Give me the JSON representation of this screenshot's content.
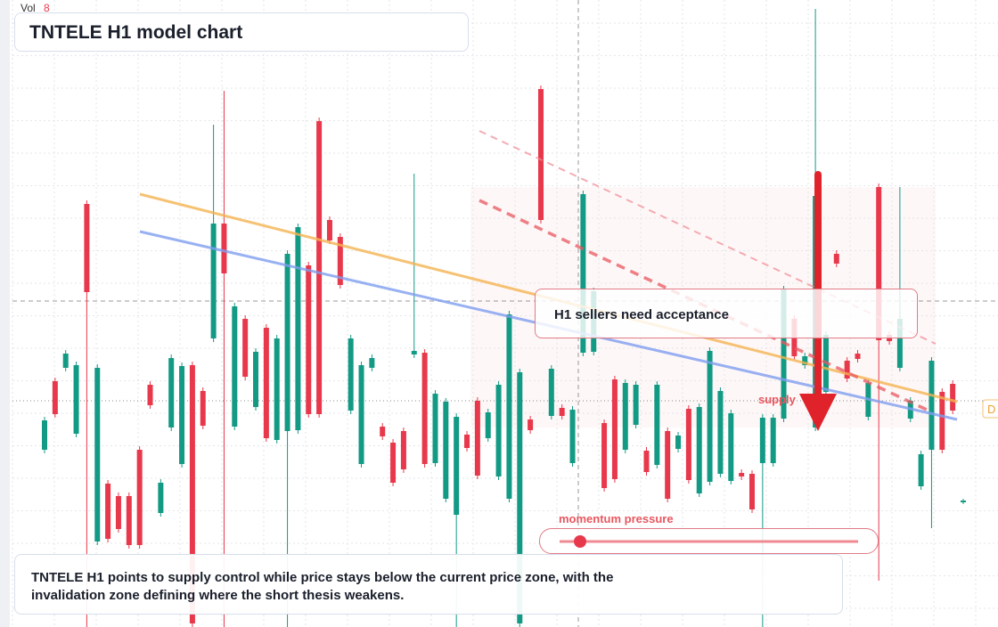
{
  "chart_data": {
    "type": "candlestick",
    "title": "TNTELE H1 model chart",
    "volume_label": "Vol",
    "volume": 8,
    "annotation": "H1 sellers need acceptance",
    "zone_label": "supply",
    "edge_label": "D",
    "meter_label": "momentum pressure",
    "caption": "TNTELE H1 points to supply control while price stays below the current price zone, with the invalidation zone defining where the short thesis weakens.",
    "up_color": "#129a84",
    "down_color": "#e8384b",
    "ylim": [
      99.6,
      170
    ],
    "open": [
      119.5,
      127.2,
      128.7,
      121.3,
      147.1,
      109.2,
      115.7,
      114.3,
      114.3,
      119.5,
      126.8,
      112.4,
      122.0,
      117.9,
      129.0,
      126.1,
      132.0,
      144.9,
      122.1,
      134.2,
      124.3,
      133.2,
      120.6,
      121.6,
      121.7,
      140.2,
      156.4,
      145.3,
      143.4,
      123.9,
      117.9,
      128.7,
      122.1,
      120.3,
      121.6,
      130.2,
      130.4,
      118.0,
      114.0,
      112.2,
      121.2,
      125.0,
      120.8,
      116.5,
      114.0,
      100.0,
      122.9,
      160.0,
      123.3,
      124.2,
      118.0,
      130.4,
      130.5,
      122.5,
      127.4,
      119.5,
      122.3,
      119.4,
      117.8,
      121.6,
      119.6,
      124.1,
      114.6,
      115.9,
      116.8,
      116.0,
      116.9,
      116.8,
      118.0,
      118.0,
      123.0,
      134.2,
      129.0,
      122.0,
      126.0,
      141.5,
      129.5,
      130.3,
      123.2,
      149.0,
      132.4,
      128.7,
      123.0,
      115.4,
      119.5,
      126.0,
      126.9,
      113.6
    ],
    "high": [
      123.2,
      127.6,
      130.7,
      129.4,
      147.5,
      129.1,
      116.1,
      114.7,
      114.7,
      119.9,
      127.2,
      116.2,
      130.2,
      129.3,
      129.4,
      126.5,
      156.0,
      159.8,
      136.0,
      134.6,
      130.9,
      133.6,
      132.4,
      141.9,
      144.9,
      140.6,
      156.8,
      145.7,
      143.8,
      132.4,
      129.4,
      130.2,
      122.5,
      120.7,
      122.0,
      150.5,
      130.8,
      126.2,
      125.3,
      123.6,
      121.6,
      125.4,
      124.1,
      127.2,
      135.1,
      128.6,
      123.3,
      160.4,
      129.0,
      124.6,
      124.4,
      148.6,
      137.7,
      122.9,
      127.8,
      127.4,
      127.2,
      119.8,
      127.2,
      122.0,
      121.5,
      124.5,
      124.7,
      131.0,
      126.5,
      124.0,
      117.3,
      117.2,
      123.5,
      123.5,
      137.9,
      134.6,
      130.4,
      169.0,
      132.8,
      141.9,
      129.9,
      130.7,
      127.4,
      149.4,
      132.8,
      149.0,
      125.4,
      119.4,
      129.9,
      126.4,
      127.3,
      114.0
    ],
    "low": [
      119.1,
      123.1,
      128.3,
      120.9,
      99.6,
      108.8,
      109.1,
      110.2,
      108.4,
      108.4,
      124.1,
      112.0,
      121.6,
      117.5,
      99.6,
      121.8,
      131.6,
      99.6,
      121.7,
      127.3,
      123.9,
      120.4,
      120.2,
      99.6,
      121.3,
      123.1,
      123.1,
      142.6,
      137.6,
      123.5,
      117.5,
      128.3,
      120.6,
      115.4,
      116.9,
      129.8,
      117.5,
      117.6,
      113.6,
      99.6,
      119.3,
      116.2,
      120.4,
      116.1,
      113.6,
      99.6,
      121.3,
      144.9,
      122.9,
      122.9,
      117.6,
      130.0,
      130.1,
      114.8,
      115.8,
      119.1,
      121.9,
      116.6,
      117.4,
      113.6,
      119.2,
      115.7,
      114.2,
      115.5,
      116.4,
      115.6,
      116.1,
      112.4,
      99.6,
      117.6,
      122.6,
      129.6,
      128.6,
      121.6,
      125.6,
      140.0,
      127.1,
      129.3,
      122.8,
      104.8,
      131.3,
      128.3,
      122.6,
      115.0,
      110.7,
      119.1,
      123.5,
      113.4
    ],
    "close": [
      122.8,
      123.5,
      130.3,
      129.0,
      137.2,
      128.7,
      109.5,
      110.6,
      108.8,
      108.8,
      124.5,
      115.8,
      129.8,
      128.9,
      100.0,
      122.2,
      144.9,
      139.3,
      135.6,
      127.7,
      130.5,
      120.8,
      132.0,
      141.5,
      144.5,
      123.5,
      123.5,
      143.0,
      138.0,
      132.0,
      129.0,
      129.8,
      121.0,
      115.8,
      117.3,
      130.6,
      117.9,
      125.8,
      124.9,
      123.2,
      119.7,
      116.6,
      123.7,
      126.8,
      134.7,
      128.2,
      121.7,
      145.3,
      128.6,
      123.3,
      124.0,
      148.2,
      137.3,
      115.2,
      116.2,
      127.0,
      126.8,
      117.0,
      126.8,
      114.0,
      121.1,
      116.1,
      124.3,
      130.6,
      126.1,
      123.6,
      116.5,
      112.8,
      123.1,
      123.1,
      137.5,
      130.0,
      130.0,
      148.0,
      132.4,
      140.4,
      127.5,
      129.7,
      127.0,
      131.8,
      131.7,
      134.2,
      125.0,
      119.0,
      129.5,
      119.5,
      123.9,
      113.8
    ]
  }
}
